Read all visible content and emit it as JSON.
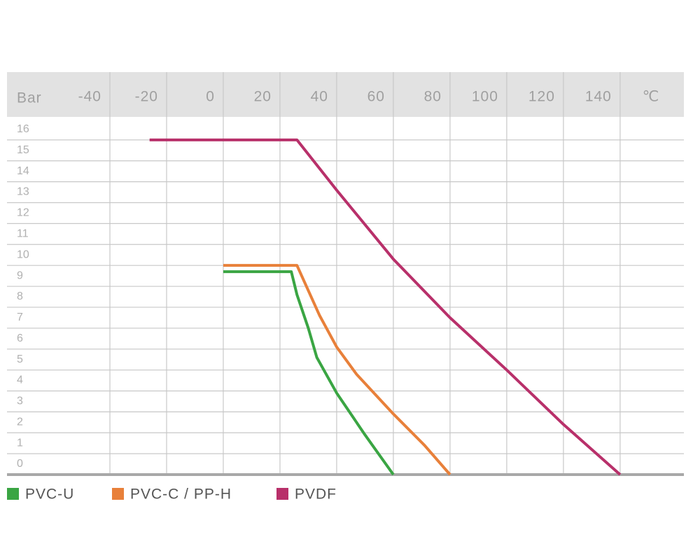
{
  "chart_data": {
    "type": "line",
    "x_label": "℃",
    "y_label": "Bar",
    "xlim": [
      -76.3,
      162.5
    ],
    "xticks": [
      -40,
      -20,
      0,
      20,
      40,
      60,
      80,
      100,
      120,
      140
    ],
    "ylim": [
      0,
      17.1
    ],
    "yticks": [
      0,
      1,
      2,
      3,
      4,
      5,
      6,
      7,
      8,
      9,
      10,
      11,
      12,
      13,
      14,
      15,
      16
    ],
    "grid": true,
    "series": [
      {
        "name": "PVC-U",
        "color": "#3aa543",
        "x": [
          0,
          24,
          26,
          30,
          33,
          40,
          50,
          60
        ],
        "values": [
          9.7,
          9.7,
          8.6,
          7.0,
          5.6,
          3.9,
          1.9,
          0
        ]
      },
      {
        "name": "PVC-C / PP-H",
        "color": "#e8803a",
        "x": [
          0,
          26,
          34,
          40,
          47,
          60,
          71,
          80
        ],
        "values": [
          10,
          10,
          7.6,
          6.1,
          4.8,
          2.9,
          1.4,
          0
        ]
      },
      {
        "name": "PVDF",
        "color": "#b8306a",
        "x": [
          -26,
          26,
          40,
          60,
          80,
          100,
          120,
          140
        ],
        "values": [
          16,
          16,
          13.6,
          10.3,
          7.5,
          5.0,
          2.4,
          0
        ]
      }
    ]
  }
}
